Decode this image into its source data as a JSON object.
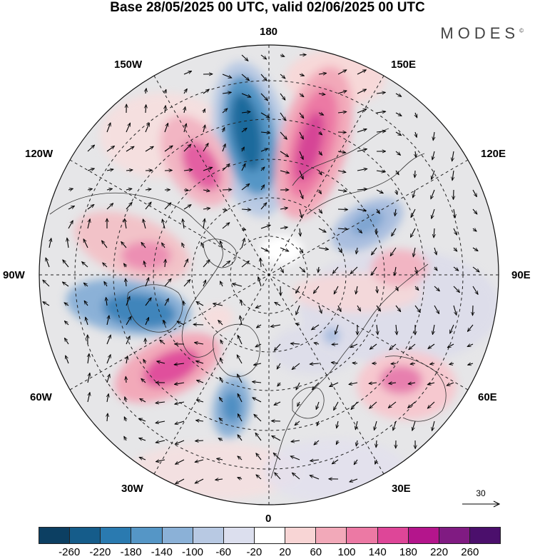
{
  "title": "Base 28/05/2025 00 UTC, valid 02/06/2025 00 UTC",
  "brand": "MODES",
  "brand_mark": "©",
  "longitude_labels": {
    "top": "180",
    "top_left": "150W",
    "top_right": "150E",
    "upper_left": "120W",
    "upper_right": "120E",
    "left": "90W",
    "right": "90E",
    "lower_left": "60W",
    "lower_right": "60E",
    "bottom_left": "30W",
    "bottom_right": "30E",
    "bottom": "0"
  },
  "reference_vector": {
    "value": "30"
  },
  "colorbar": {
    "ticks": [
      "-260",
      "-220",
      "-180",
      "-140",
      "-100",
      "-60",
      "-20",
      "20",
      "60",
      "100",
      "140",
      "180",
      "220",
      "260"
    ],
    "colors": [
      "#0c3f62",
      "#155c8a",
      "#2a7ab0",
      "#5596c6",
      "#8bb1d7",
      "#b8c9e3",
      "#dcdfee",
      "#ffffff",
      "#f8d5d5",
      "#f2a9b9",
      "#ec79a4",
      "#de4698",
      "#b4158c",
      "#801b82",
      "#4b0f6c"
    ]
  },
  "map": {
    "projection": "north polar stereographic",
    "background_color": "#e8e8e8",
    "anomaly_centers": [
      {
        "name": "pacific-negative",
        "sign": "negative",
        "level": "-220"
      },
      {
        "name": "pacific-positive",
        "sign": "positive",
        "level": "180"
      },
      {
        "name": "alaska-positive",
        "sign": "positive",
        "level": "140"
      },
      {
        "name": "canada-positive",
        "sign": "positive",
        "level": "100"
      },
      {
        "name": "canada-negative",
        "sign": "negative",
        "level": "-180"
      },
      {
        "name": "atlantic-positive",
        "sign": "positive",
        "level": "180"
      },
      {
        "name": "atlantic-negative",
        "sign": "negative",
        "level": "-140"
      },
      {
        "name": "siberia-negative",
        "sign": "negative",
        "level": "-100"
      },
      {
        "name": "eurasia-positive",
        "sign": "positive",
        "level": "100"
      },
      {
        "name": "asia-positive",
        "sign": "positive",
        "level": "140"
      }
    ]
  }
}
